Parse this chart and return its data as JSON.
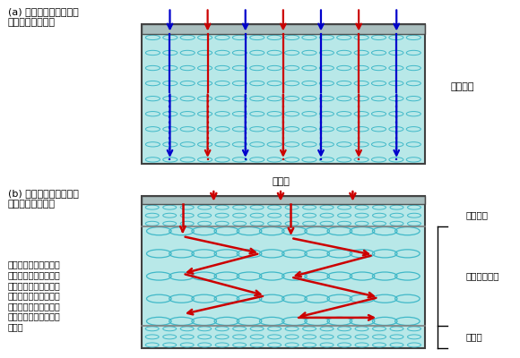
{
  "title_a": "(a) 光閉じこめ構造無し\n上部の電池に適用",
  "title_b": "(b) 光閉じこめ構造有り\n下部の電池に適用",
  "label_non_scatter_a": "非散乱層",
  "label_non_scatter_b": "非散乱層",
  "label_scatter": "散乱・屈折層",
  "label_reflect": "反射層",
  "label_incident": "入射光",
  "description_b": "矢印の赤い部分で光が\n吸収される。散乱や屈\n折、反射により赤い部\n分が長くなることで光\n吸収効率が高くなり、\n吸収される光の割合が\n増加。",
  "bg_color": "#ffffff",
  "cell_color": "#b8e8e8",
  "border_color": "#404040",
  "glass_color": "#a8b8b8",
  "arrow_red": "#cc0000",
  "arrow_blue": "#0000cc",
  "circle_color": "#40b8c8",
  "divider_color": "#808080"
}
